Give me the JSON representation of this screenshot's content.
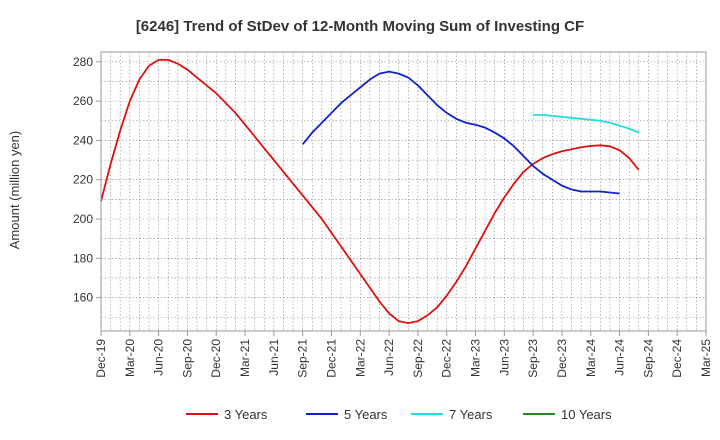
{
  "chart_data": {
    "type": "line",
    "title": "[6246]  Trend of StDev of 12-Month Moving Sum of Investing CF",
    "xlabel": "",
    "ylabel": "Amount (million yen)",
    "ylim": [
      143,
      285
    ],
    "yticks": [
      160,
      180,
      200,
      220,
      240,
      260,
      280
    ],
    "x_tick_labels": [
      "Dec-19",
      "Mar-20",
      "Jun-20",
      "Sep-20",
      "Dec-20",
      "Mar-21",
      "Jun-21",
      "Sep-21",
      "Dec-21",
      "Mar-22",
      "Jun-22",
      "Sep-22",
      "Dec-22",
      "Mar-23",
      "Jun-23",
      "Sep-23",
      "Dec-23",
      "Mar-24",
      "Jun-24",
      "Sep-24",
      "Dec-24",
      "Mar-25"
    ],
    "grid": true,
    "legend_position": "bottom",
    "series": [
      {
        "name": "3 Years",
        "color": "#dd1111",
        "start_index": 0,
        "values": [
          209,
          228,
          245,
          260,
          271,
          278,
          281,
          281,
          279,
          276,
          272,
          268,
          264,
          259,
          254,
          248,
          242,
          236,
          230,
          224,
          218,
          212,
          206,
          200,
          193,
          186,
          179,
          172,
          165,
          158,
          152,
          148,
          147,
          148,
          151,
          155,
          161,
          168,
          176,
          185,
          194,
          203,
          211,
          218,
          224,
          228,
          231,
          233,
          234.5,
          235.5,
          236.5,
          237.2,
          237.5,
          237,
          235,
          231,
          225
        ]
      },
      {
        "name": "5 Years",
        "color": "#1122cc",
        "start_index": 21,
        "values": [
          238,
          244,
          249,
          254,
          259,
          263,
          267,
          271,
          274,
          275,
          274,
          272,
          268,
          263,
          258,
          254,
          251,
          249,
          248,
          246.5,
          244,
          241,
          237,
          232,
          227,
          223,
          220,
          217,
          215,
          214,
          214,
          214,
          213.5,
          213
        ]
      },
      {
        "name": "7 Years",
        "color": "#22dddd",
        "start_index": 45,
        "values": [
          253,
          253,
          252.5,
          252,
          251.5,
          251,
          250.5,
          250,
          249,
          247.5,
          246,
          244
        ]
      },
      {
        "name": "10 Years",
        "color": "#228822",
        "start_index": 0,
        "values": []
      }
    ]
  }
}
